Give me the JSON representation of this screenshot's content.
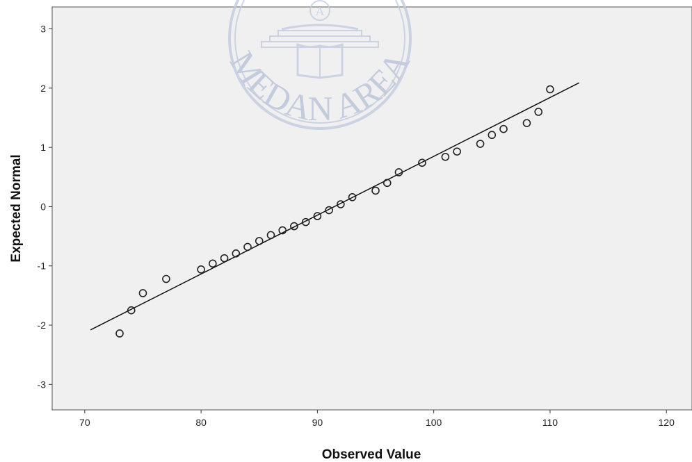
{
  "chart_data": {
    "type": "scatter",
    "title": "",
    "xlabel": "Observed Value",
    "ylabel": "Expected Normal",
    "xlim": [
      67.2,
      122.2
    ],
    "ylim": [
      -3.43,
      3.37
    ],
    "x_ticks": [
      70,
      80,
      90,
      100,
      110,
      120
    ],
    "y_ticks": [
      3,
      2,
      1,
      0,
      -1,
      -2,
      -3
    ],
    "grid": false,
    "background_color": "#f0f0f0",
    "marker": "hollow-circle",
    "series": [
      {
        "points": [
          [
            73,
            -2.14
          ],
          [
            74,
            -1.75
          ],
          [
            75,
            -1.46
          ],
          [
            77,
            -1.22
          ],
          [
            80,
            -1.06
          ],
          [
            81,
            -0.96
          ],
          [
            82,
            -0.87
          ],
          [
            83,
            -0.79
          ],
          [
            84,
            -0.68
          ],
          [
            85,
            -0.58
          ],
          [
            86,
            -0.48
          ],
          [
            87,
            -0.4
          ],
          [
            88,
            -0.33
          ],
          [
            89,
            -0.26
          ],
          [
            90,
            -0.16
          ],
          [
            91,
            -0.06
          ],
          [
            92,
            0.04
          ],
          [
            93,
            0.16
          ],
          [
            95,
            0.27
          ],
          [
            96,
            0.4
          ],
          [
            97,
            0.58
          ],
          [
            99,
            0.74
          ],
          [
            101,
            0.84
          ],
          [
            102,
            0.93
          ],
          [
            104,
            1.06
          ],
          [
            105,
            1.21
          ],
          [
            106,
            1.31
          ],
          [
            108,
            1.41
          ],
          [
            109,
            1.6
          ],
          [
            110,
            1.98
          ]
        ]
      }
    ],
    "reference_line": {
      "x": [
        70.5,
        112.5
      ],
      "y": [
        -2.08,
        2.09
      ]
    }
  },
  "watermark": {
    "text": "MEDAN AREA",
    "emblem_letter": "A",
    "color": "#b8c2d8"
  }
}
